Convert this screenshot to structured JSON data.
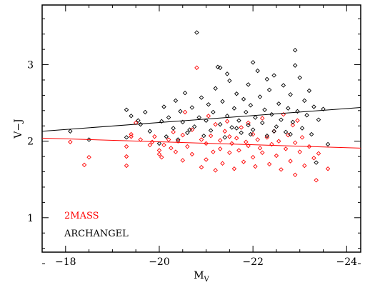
{
  "chart_data": {
    "type": "scatter",
    "title": "",
    "xlabel": "M",
    "xlabel_sub": "V",
    "ylabel": "V−J",
    "xlim": [
      -17.5,
      -24.3
    ],
    "ylim": [
      0.55,
      3.78
    ],
    "x_ticks": [
      -18,
      -20,
      -22,
      -24
    ],
    "x_tick_labels": [
      "−18",
      "−20",
      "−22",
      "−24"
    ],
    "y_ticks": [
      1,
      2,
      3
    ],
    "y_tick_labels": [
      "1",
      "2",
      "3"
    ],
    "grid": false,
    "legend_position": "bottom-left",
    "series": [
      {
        "name": "2MASS",
        "color": "#ff0000",
        "marker": "diamond",
        "fit_line": {
          "x": [
            -17.5,
            -24.3
          ],
          "y": [
            2.04,
            1.91
          ]
        },
        "points": [
          {
            "x": -18.1,
            "y": 1.99
          },
          {
            "x": -18.4,
            "y": 1.69
          },
          {
            "x": -18.5,
            "y": 1.79
          },
          {
            "x": -19.3,
            "y": 1.93
          },
          {
            "x": -19.4,
            "y": 2.09
          },
          {
            "x": -19.3,
            "y": 1.68
          },
          {
            "x": -19.3,
            "y": 1.8
          },
          {
            "x": -19.4,
            "y": 2.06
          },
          {
            "x": -19.6,
            "y": 2.02
          },
          {
            "x": -19.8,
            "y": 1.95
          },
          {
            "x": -19.85,
            "y": 1.99
          },
          {
            "x": -19.9,
            "y": 2.06
          },
          {
            "x": -20.0,
            "y": 1.88
          },
          {
            "x": -20.0,
            "y": 1.83
          },
          {
            "x": -20.05,
            "y": 1.79
          },
          {
            "x": -20.1,
            "y": 1.95
          },
          {
            "x": -20.2,
            "y": 2.02
          },
          {
            "x": -20.3,
            "y": 2.12
          },
          {
            "x": -20.35,
            "y": 1.86
          },
          {
            "x": -20.4,
            "y": 2.0
          },
          {
            "x": -20.5,
            "y": 1.75
          },
          {
            "x": -20.5,
            "y": 2.08
          },
          {
            "x": -20.6,
            "y": 1.93
          },
          {
            "x": -20.7,
            "y": 1.83
          },
          {
            "x": -20.7,
            "y": 2.15
          },
          {
            "x": -20.8,
            "y": 2.96
          },
          {
            "x": -20.9,
            "y": 2.02
          },
          {
            "x": -20.9,
            "y": 1.66
          },
          {
            "x": -21.0,
            "y": 1.97
          },
          {
            "x": -21.0,
            "y": 1.76
          },
          {
            "x": -21.1,
            "y": 2.07
          },
          {
            "x": -21.15,
            "y": 1.86
          },
          {
            "x": -21.2,
            "y": 2.22
          },
          {
            "x": -21.2,
            "y": 1.62
          },
          {
            "x": -21.3,
            "y": 2.01
          },
          {
            "x": -21.3,
            "y": 1.9
          },
          {
            "x": -21.35,
            "y": 1.71
          },
          {
            "x": -21.4,
            "y": 2.13
          },
          {
            "x": -21.5,
            "y": 1.85
          },
          {
            "x": -21.5,
            "y": 2.06
          },
          {
            "x": -21.55,
            "y": 1.97
          },
          {
            "x": -21.6,
            "y": 1.64
          },
          {
            "x": -21.65,
            "y": 2.04
          },
          {
            "x": -21.7,
            "y": 1.88
          },
          {
            "x": -21.75,
            "y": 2.18
          },
          {
            "x": -21.8,
            "y": 1.73
          },
          {
            "x": -21.85,
            "y": 1.99
          },
          {
            "x": -21.9,
            "y": 2.24
          },
          {
            "x": -21.9,
            "y": 1.94
          },
          {
            "x": -22.0,
            "y": 2.09
          },
          {
            "x": -22.0,
            "y": 1.79
          },
          {
            "x": -22.05,
            "y": 1.67
          },
          {
            "x": -22.1,
            "y": 2.02
          },
          {
            "x": -22.15,
            "y": 1.91
          },
          {
            "x": -22.2,
            "y": 2.3
          },
          {
            "x": -22.2,
            "y": 1.85
          },
          {
            "x": -22.3,
            "y": 2.05
          },
          {
            "x": -22.35,
            "y": 1.7
          },
          {
            "x": -22.4,
            "y": 1.96
          },
          {
            "x": -22.45,
            "y": 2.13
          },
          {
            "x": -22.5,
            "y": 1.81
          },
          {
            "x": -22.55,
            "y": 2.0
          },
          {
            "x": -22.6,
            "y": 1.63
          },
          {
            "x": -22.7,
            "y": 1.9
          },
          {
            "x": -22.75,
            "y": 2.08
          },
          {
            "x": -22.8,
            "y": 1.74
          },
          {
            "x": -22.85,
            "y": 2.21
          },
          {
            "x": -22.9,
            "y": 1.98
          },
          {
            "x": -22.9,
            "y": 1.56
          },
          {
            "x": -23.0,
            "y": 1.86
          },
          {
            "x": -23.05,
            "y": 2.05
          },
          {
            "x": -23.1,
            "y": 1.68
          },
          {
            "x": -23.2,
            "y": 1.93
          },
          {
            "x": -23.3,
            "y": 1.78
          },
          {
            "x": -23.35,
            "y": 1.49
          },
          {
            "x": -23.4,
            "y": 1.84
          },
          {
            "x": -23.6,
            "y": 1.64
          },
          {
            "x": -21.45,
            "y": 2.26
          },
          {
            "x": -20.25,
            "y": 1.91
          },
          {
            "x": -19.5,
            "y": 2.24
          },
          {
            "x": -22.65,
            "y": 2.35
          },
          {
            "x": -21.05,
            "y": 2.33
          },
          {
            "x": -20.55,
            "y": 2.38
          },
          {
            "x": -22.95,
            "y": 2.27
          }
        ]
      },
      {
        "name": "ARCHANGEL",
        "color": "#000000",
        "marker": "diamond",
        "fit_line": {
          "x": [
            -17.5,
            -24.3
          ],
          "y": [
            2.13,
            2.44
          ]
        },
        "points": [
          {
            "x": -18.1,
            "y": 2.13
          },
          {
            "x": -18.5,
            "y": 2.02
          },
          {
            "x": -19.3,
            "y": 2.41
          },
          {
            "x": -19.3,
            "y": 2.05
          },
          {
            "x": -19.4,
            "y": 2.33
          },
          {
            "x": -19.55,
            "y": 2.27
          },
          {
            "x": -19.6,
            "y": 2.22
          },
          {
            "x": -19.7,
            "y": 2.38
          },
          {
            "x": -19.8,
            "y": 2.13
          },
          {
            "x": -20.0,
            "y": 1.97
          },
          {
            "x": -20.05,
            "y": 2.26
          },
          {
            "x": -20.1,
            "y": 2.45
          },
          {
            "x": -20.15,
            "y": 2.06
          },
          {
            "x": -20.2,
            "y": 2.31
          },
          {
            "x": -20.3,
            "y": 2.17
          },
          {
            "x": -20.35,
            "y": 2.53
          },
          {
            "x": -20.4,
            "y": 2.02
          },
          {
            "x": -20.45,
            "y": 2.39
          },
          {
            "x": -20.5,
            "y": 2.25
          },
          {
            "x": -20.55,
            "y": 2.63
          },
          {
            "x": -20.6,
            "y": 2.11
          },
          {
            "x": -20.7,
            "y": 2.44
          },
          {
            "x": -20.75,
            "y": 2.19
          },
          {
            "x": -20.8,
            "y": 3.42
          },
          {
            "x": -20.85,
            "y": 2.31
          },
          {
            "x": -20.9,
            "y": 2.57
          },
          {
            "x": -20.95,
            "y": 2.07
          },
          {
            "x": -21.0,
            "y": 2.27
          },
          {
            "x": -21.05,
            "y": 2.48
          },
          {
            "x": -21.1,
            "y": 2.14
          },
          {
            "x": -21.15,
            "y": 2.38
          },
          {
            "x": -21.2,
            "y": 2.69
          },
          {
            "x": -21.25,
            "y": 2.97
          },
          {
            "x": -21.3,
            "y": 2.96
          },
          {
            "x": -21.3,
            "y": 2.22
          },
          {
            "x": -21.35,
            "y": 2.52
          },
          {
            "x": -21.4,
            "y": 2.05
          },
          {
            "x": -21.45,
            "y": 2.33
          },
          {
            "x": -21.5,
            "y": 2.79
          },
          {
            "x": -21.55,
            "y": 2.18
          },
          {
            "x": -21.6,
            "y": 2.43
          },
          {
            "x": -21.65,
            "y": 2.62
          },
          {
            "x": -21.7,
            "y": 2.27
          },
          {
            "x": -21.75,
            "y": 2.11
          },
          {
            "x": -21.8,
            "y": 2.55
          },
          {
            "x": -21.85,
            "y": 2.38
          },
          {
            "x": -21.9,
            "y": 2.21
          },
          {
            "x": -21.9,
            "y": 2.74
          },
          {
            "x": -21.95,
            "y": 2.47
          },
          {
            "x": -22.0,
            "y": 2.15
          },
          {
            "x": -22.05,
            "y": 2.31
          },
          {
            "x": -22.1,
            "y": 2.92
          },
          {
            "x": -22.15,
            "y": 2.58
          },
          {
            "x": -22.2,
            "y": 2.24
          },
          {
            "x": -22.25,
            "y": 2.41
          },
          {
            "x": -22.3,
            "y": 2.07
          },
          {
            "x": -22.35,
            "y": 2.67
          },
          {
            "x": -22.4,
            "y": 2.35
          },
          {
            "x": -22.45,
            "y": 2.86
          },
          {
            "x": -22.5,
            "y": 2.19
          },
          {
            "x": -22.55,
            "y": 2.49
          },
          {
            "x": -22.6,
            "y": 2.28
          },
          {
            "x": -22.65,
            "y": 2.73
          },
          {
            "x": -22.7,
            "y": 2.12
          },
          {
            "x": -22.75,
            "y": 2.43
          },
          {
            "x": -22.8,
            "y": 2.61
          },
          {
            "x": -22.85,
            "y": 2.25
          },
          {
            "x": -22.9,
            "y": 3.19
          },
          {
            "x": -22.9,
            "y": 2.99
          },
          {
            "x": -22.95,
            "y": 2.39
          },
          {
            "x": -23.0,
            "y": 2.83
          },
          {
            "x": -23.05,
            "y": 2.17
          },
          {
            "x": -23.1,
            "y": 2.53
          },
          {
            "x": -23.15,
            "y": 2.34
          },
          {
            "x": -23.2,
            "y": 2.66
          },
          {
            "x": -23.25,
            "y": 2.09
          },
          {
            "x": -23.3,
            "y": 2.45
          },
          {
            "x": -23.35,
            "y": 1.72
          },
          {
            "x": -23.4,
            "y": 2.28
          },
          {
            "x": -23.5,
            "y": 2.42
          },
          {
            "x": -23.6,
            "y": 1.96
          },
          {
            "x": -21.45,
            "y": 2.88
          },
          {
            "x": -22.0,
            "y": 3.03
          },
          {
            "x": -22.3,
            "y": 2.81
          },
          {
            "x": -21.65,
            "y": 2.17
          },
          {
            "x": -20.65,
            "y": 2.15
          },
          {
            "x": -21.95,
            "y": 2.09
          },
          {
            "x": -22.45,
            "y": 2.13
          },
          {
            "x": -22.8,
            "y": 2.09
          }
        ]
      }
    ]
  }
}
